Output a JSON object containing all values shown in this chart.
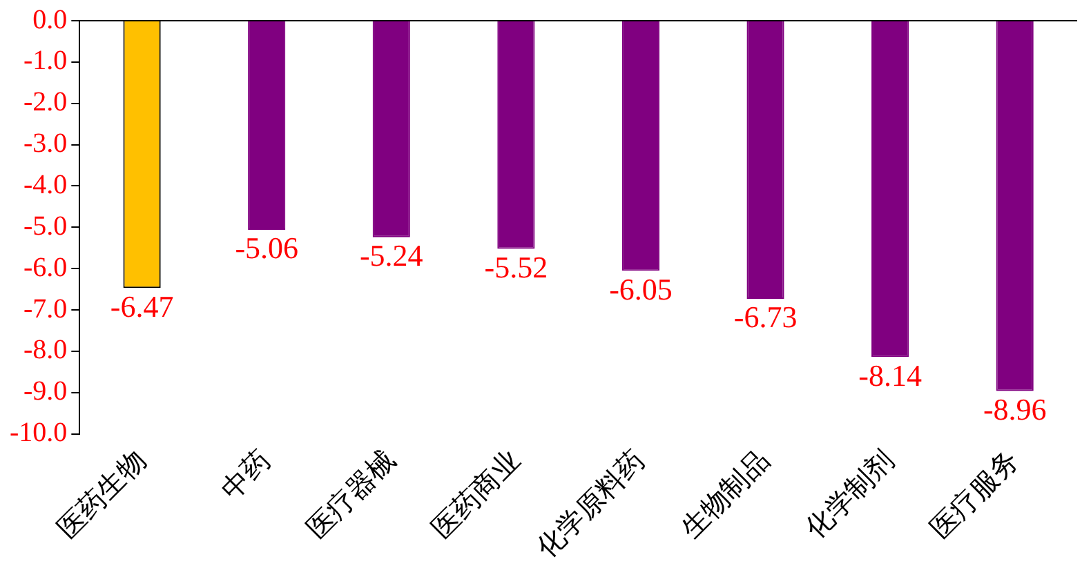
{
  "chart_data": {
    "type": "bar",
    "categories": [
      "医药生物",
      "中药",
      "医疗器械",
      "医药商业",
      "化学原料药",
      "生物制品",
      "化学制剂",
      "医疗服务"
    ],
    "values": [
      -6.47,
      -5.06,
      -5.24,
      -5.52,
      -6.05,
      -6.73,
      -8.14,
      -8.96
    ],
    "colors": [
      "#ffc000",
      "#800080",
      "#800080",
      "#800080",
      "#800080",
      "#800080",
      "#800080",
      "#800080"
    ],
    "ylim": [
      -10,
      0
    ],
    "yticks": [
      {
        "value": 0,
        "label": "0.0"
      },
      {
        "value": -1,
        "label": "-1.0"
      },
      {
        "value": -2,
        "label": "-2.0"
      },
      {
        "value": -3,
        "label": "-3.0"
      },
      {
        "value": -4,
        "label": "-4.0"
      },
      {
        "value": -5,
        "label": "-5.0"
      },
      {
        "value": -6,
        "label": "-6.0"
      },
      {
        "value": -7,
        "label": "-7.0"
      },
      {
        "value": -8,
        "label": "-8.0"
      },
      {
        "value": -9,
        "label": "-9.0"
      },
      {
        "value": -10,
        "label": "-10.0"
      }
    ],
    "grid": false,
    "legend": false,
    "data_labels": true
  }
}
